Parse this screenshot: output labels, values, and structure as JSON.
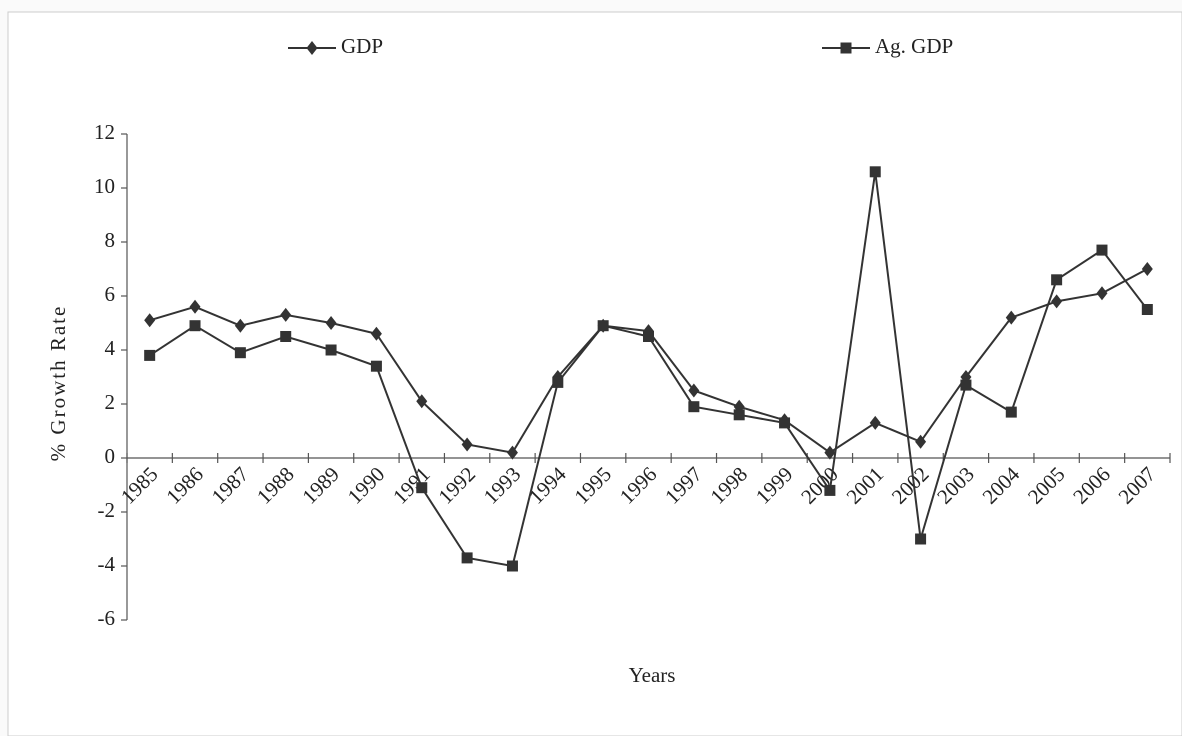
{
  "chart_data": {
    "type": "line",
    "y_label": "% Growth Rate",
    "x_label": "Years",
    "categories": [
      "1985",
      "1986",
      "1987",
      "1988",
      "1989",
      "1990",
      "1991",
      "1992",
      "1993",
      "1994",
      "1995",
      "1996",
      "1997",
      "1998",
      "1999",
      "2000",
      "2001",
      "2002",
      "2003",
      "2004",
      "2005",
      "2006",
      "2007"
    ],
    "series": [
      {
        "name": "GDP",
        "color": "#333333",
        "marker": "diamond",
        "values": [
          5.1,
          5.6,
          4.9,
          5.3,
          5.0,
          4.6,
          2.1,
          0.5,
          0.2,
          3.0,
          4.9,
          4.7,
          2.5,
          1.9,
          1.4,
          0.2,
          1.3,
          0.6,
          3.0,
          5.2,
          5.8,
          6.1,
          7.0
        ]
      },
      {
        "name": "Ag. GDP",
        "color": "#333333",
        "marker": "square",
        "values": [
          3.8,
          4.9,
          3.9,
          4.5,
          4.0,
          3.4,
          -1.1,
          -3.7,
          -4.0,
          2.8,
          4.9,
          4.5,
          1.9,
          1.6,
          1.3,
          -1.2,
          10.6,
          -3.0,
          2.7,
          1.7,
          6.6,
          7.7,
          5.5
        ]
      }
    ],
    "ylim": [
      -6,
      12
    ],
    "yticks": [
      -6,
      -4,
      -2,
      0,
      2,
      4,
      6,
      8,
      10,
      12
    ],
    "grid": false,
    "legend": "top"
  }
}
